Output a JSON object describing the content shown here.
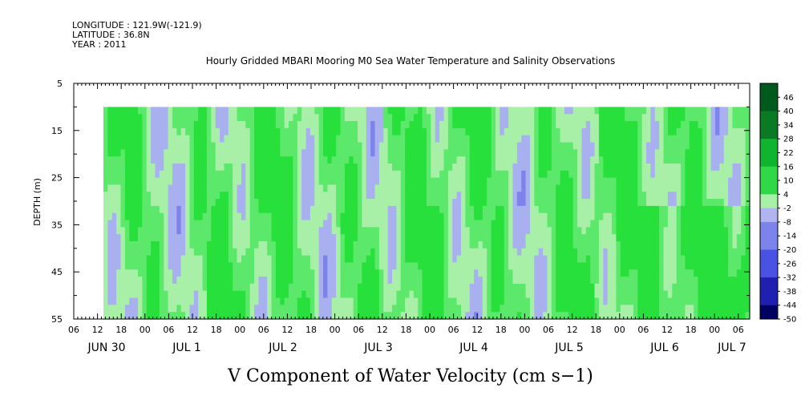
{
  "header": {
    "longitude": "LONGITUDE : 121.9W(-121.9)",
    "latitude": "LATITUDE : 36.8N",
    "year": "YEAR : 2011"
  },
  "chart_data": {
    "type": "heatmap",
    "title": "Hourly Gridded MBARI Mooring M0 Sea Water Temperature and Salinity Observations",
    "xlabel": "V Component of Water Velocity (cm s−1)",
    "ylabel": "DEPTH (m)",
    "y_ticks": [
      5,
      15,
      25,
      35,
      45,
      55
    ],
    "ylim": [
      55,
      5
    ],
    "data_depth_range": [
      10,
      55
    ],
    "x_hour_ticks": [
      "06",
      "12",
      "18",
      "00",
      "06",
      "12",
      "18",
      "00",
      "06",
      "12",
      "18",
      "00",
      "06",
      "12",
      "18",
      "00",
      "06",
      "12",
      "18",
      "00",
      "06",
      "12",
      "18",
      "00",
      "06",
      "12",
      "18",
      "00",
      "06"
    ],
    "x_day_labels": [
      "JUN 30",
      "JUL 1",
      "JUL 2",
      "JUL 3",
      "JUL 4",
      "JUL 5",
      "JUL 6",
      "JUL 7"
    ],
    "colorbar_levels": [
      "46",
      "40",
      "34",
      "28",
      "22",
      "16",
      "10",
      "4",
      "-2",
      "-8",
      "-14",
      "-20",
      "-26",
      "-32",
      "-38",
      "-44",
      "-50"
    ],
    "colorbar_range": [
      -50,
      52
    ],
    "description_of_field": "values mostly between -8 and 16 cm/s; diagonal alternating bands of positive (green) and negative (blue) velocity",
    "colors": {
      "strong_positive": "#005a1e",
      "positive": "#28e03c",
      "weak_positive": "#a8f0a8",
      "weak_negative": "#a8b0f0",
      "negative": "#4040e0",
      "strong_negative": "#000060"
    }
  }
}
